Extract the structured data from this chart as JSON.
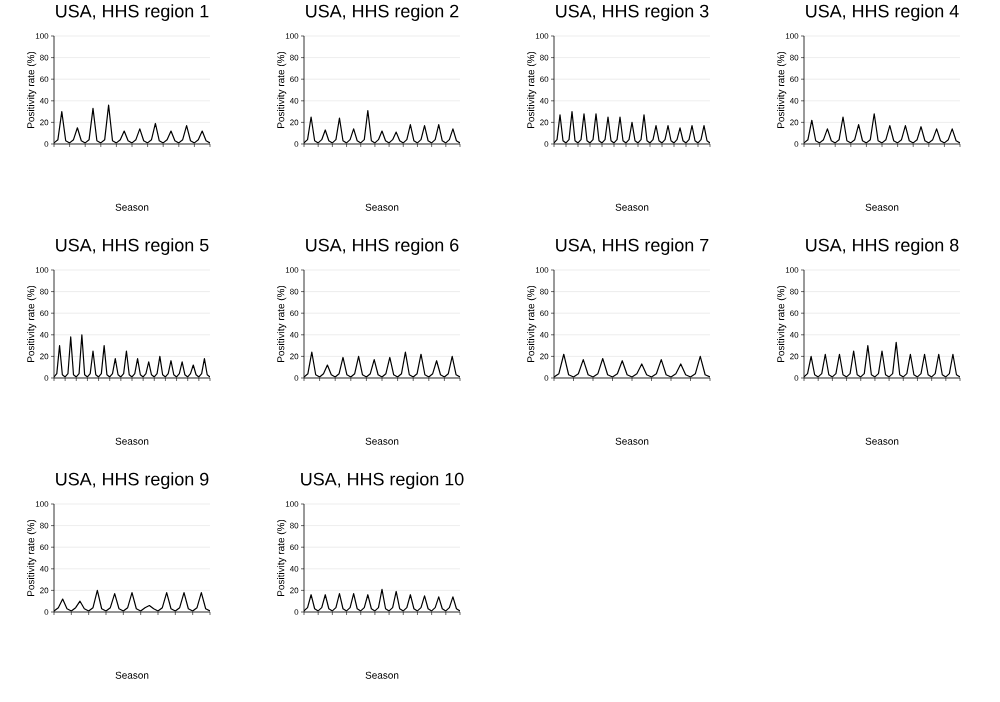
{
  "chart_data": [
    {
      "type": "line",
      "title": "USA, HHS region 1",
      "xlabel": "Season",
      "ylabel": "Positivity rate (%)",
      "color": "#000000",
      "grid": "y",
      "tick_labels": "y",
      "ylim": [
        0,
        100
      ],
      "yticks": [
        0,
        20,
        40,
        60,
        80,
        100
      ],
      "categories": [
        null,
        null,
        null,
        null,
        null,
        null,
        null,
        null,
        null,
        null,
        null,
        null,
        null,
        null,
        null,
        null,
        null,
        null,
        null,
        null,
        null,
        null,
        null,
        null,
        null,
        null,
        null,
        null,
        null,
        null,
        null,
        null,
        null,
        null,
        null,
        null,
        null,
        null,
        null,
        null,
        null
      ],
      "values": [
        1,
        4,
        30,
        3,
        1,
        4,
        15,
        3,
        1,
        4,
        33,
        3,
        1,
        4,
        36,
        3,
        1,
        4,
        12,
        3,
        1,
        4,
        14,
        3,
        1,
        4,
        19,
        3,
        1,
        4,
        12,
        3,
        1,
        4,
        17,
        3,
        1,
        4,
        12,
        3,
        1
      ]
    },
    {
      "type": "line",
      "title": "USA, HHS region 2",
      "xlabel": "Season",
      "ylabel": "Positivity rate (%)",
      "color": "#000000",
      "grid": "y",
      "tick_labels": "y",
      "ylim": [
        0,
        100
      ],
      "yticks": [
        0,
        20,
        40,
        60,
        80,
        100
      ],
      "categories": [
        null,
        null,
        null,
        null,
        null,
        null,
        null,
        null,
        null,
        null,
        null,
        null,
        null,
        null,
        null,
        null,
        null,
        null,
        null,
        null,
        null,
        null,
        null,
        null,
        null,
        null,
        null,
        null,
        null,
        null,
        null,
        null,
        null,
        null,
        null,
        null,
        null,
        null,
        null,
        null,
        null,
        null,
        null,
        null,
        null
      ],
      "values": [
        1,
        4,
        25,
        3,
        1,
        4,
        13,
        3,
        1,
        4,
        24,
        3,
        1,
        4,
        14,
        3,
        1,
        4,
        31,
        3,
        1,
        4,
        12,
        3,
        1,
        4,
        11,
        3,
        1,
        4,
        18,
        3,
        1,
        4,
        17,
        3,
        1,
        4,
        18,
        3,
        1,
        4,
        14,
        3,
        1
      ]
    },
    {
      "type": "line",
      "title": "USA, HHS region 3",
      "xlabel": "Season",
      "ylabel": "Positivity rate (%)",
      "color": "#000000",
      "grid": "y",
      "tick_labels": "y",
      "ylim": [
        0,
        100
      ],
      "yticks": [
        0,
        20,
        40,
        60,
        80,
        100
      ],
      "categories": [
        null,
        null,
        null,
        null,
        null,
        null,
        null,
        null,
        null,
        null,
        null,
        null,
        null,
        null,
        null,
        null,
        null,
        null,
        null,
        null,
        null,
        null,
        null,
        null,
        null,
        null,
        null,
        null,
        null,
        null,
        null,
        null,
        null,
        null,
        null,
        null,
        null,
        null,
        null,
        null,
        null,
        null,
        null,
        null,
        null,
        null,
        null,
        null,
        null,
        null,
        null,
        null,
        null
      ],
      "values": [
        1,
        4,
        27,
        3,
        1,
        4,
        30,
        3,
        1,
        4,
        28,
        3,
        1,
        4,
        28,
        3,
        1,
        4,
        25,
        3,
        1,
        4,
        25,
        3,
        1,
        4,
        20,
        3,
        1,
        4,
        27,
        3,
        1,
        4,
        17,
        3,
        1,
        4,
        17,
        3,
        1,
        4,
        15,
        3,
        1,
        4,
        17,
        3,
        1,
        4,
        17,
        3,
        1
      ]
    },
    {
      "type": "line",
      "title": "USA, HHS region 4",
      "xlabel": "Season",
      "ylabel": "Positivity rate (%)",
      "color": "#000000",
      "grid": "y",
      "tick_labels": "y",
      "ylim": [
        0,
        100
      ],
      "yticks": [
        0,
        20,
        40,
        60,
        80,
        100
      ],
      "categories": [
        null,
        null,
        null,
        null,
        null,
        null,
        null,
        null,
        null,
        null,
        null,
        null,
        null,
        null,
        null,
        null,
        null,
        null,
        null,
        null,
        null,
        null,
        null,
        null,
        null,
        null,
        null,
        null,
        null,
        null,
        null,
        null,
        null,
        null,
        null,
        null,
        null,
        null,
        null,
        null,
        null
      ],
      "values": [
        1,
        4,
        22,
        3,
        1,
        4,
        14,
        3,
        1,
        4,
        25,
        3,
        1,
        4,
        18,
        3,
        1,
        4,
        28,
        3,
        1,
        4,
        17,
        3,
        1,
        4,
        17,
        3,
        1,
        4,
        16,
        3,
        1,
        4,
        14,
        3,
        1,
        4,
        14,
        3,
        1
      ]
    },
    {
      "type": "line",
      "title": "USA, HHS region 5",
      "xlabel": "Season",
      "ylabel": "Positivity rate (%)",
      "color": "#000000",
      "grid": "y",
      "tick_labels": "y",
      "ylim": [
        0,
        100
      ],
      "yticks": [
        0,
        20,
        40,
        60,
        80,
        100
      ],
      "categories": [
        null,
        null,
        null,
        null,
        null,
        null,
        null,
        null,
        null,
        null,
        null,
        null,
        null,
        null,
        null,
        null,
        null,
        null,
        null,
        null,
        null,
        null,
        null,
        null,
        null,
        null,
        null,
        null,
        null,
        null,
        null,
        null,
        null,
        null,
        null,
        null,
        null,
        null,
        null,
        null,
        null,
        null,
        null,
        null,
        null,
        null,
        null,
        null,
        null,
        null,
        null,
        null,
        null,
        null,
        null,
        null,
        null
      ],
      "values": [
        1,
        4,
        30,
        3,
        1,
        4,
        38,
        3,
        1,
        4,
        40,
        3,
        1,
        4,
        25,
        3,
        1,
        4,
        30,
        3,
        1,
        4,
        18,
        3,
        1,
        4,
        25,
        3,
        1,
        4,
        18,
        3,
        1,
        4,
        15,
        3,
        1,
        4,
        20,
        3,
        1,
        4,
        16,
        3,
        1,
        4,
        15,
        3,
        1,
        4,
        12,
        3,
        1,
        4,
        18,
        3,
        1
      ]
    },
    {
      "type": "line",
      "title": "USA, HHS region 6",
      "xlabel": "Season",
      "ylabel": "Positivity rate (%)",
      "color": "#000000",
      "grid": "y",
      "tick_labels": "y",
      "ylim": [
        0,
        100
      ],
      "yticks": [
        0,
        20,
        40,
        60,
        80,
        100
      ],
      "categories": [
        null,
        null,
        null,
        null,
        null,
        null,
        null,
        null,
        null,
        null,
        null,
        null,
        null,
        null,
        null,
        null,
        null,
        null,
        null,
        null,
        null,
        null,
        null,
        null,
        null,
        null,
        null,
        null,
        null,
        null,
        null,
        null,
        null,
        null,
        null,
        null,
        null,
        null,
        null,
        null,
        null
      ],
      "values": [
        1,
        4,
        24,
        3,
        1,
        4,
        12,
        3,
        1,
        4,
        19,
        3,
        1,
        4,
        20,
        3,
        1,
        4,
        17,
        3,
        1,
        4,
        19,
        3,
        1,
        4,
        24,
        3,
        1,
        4,
        22,
        3,
        1,
        4,
        16,
        3,
        1,
        4,
        20,
        3,
        1
      ]
    },
    {
      "type": "line",
      "title": "USA, HHS region 7",
      "xlabel": "Season",
      "ylabel": "Positivity rate (%)",
      "color": "#000000",
      "grid": "y",
      "tick_labels": "y",
      "ylim": [
        0,
        100
      ],
      "yticks": [
        0,
        20,
        40,
        60,
        80,
        100
      ],
      "categories": [
        null,
        null,
        null,
        null,
        null,
        null,
        null,
        null,
        null,
        null,
        null,
        null,
        null,
        null,
        null,
        null,
        null,
        null,
        null,
        null,
        null,
        null,
        null,
        null,
        null,
        null,
        null,
        null,
        null,
        null,
        null,
        null,
        null
      ],
      "values": [
        1,
        4,
        22,
        3,
        1,
        4,
        17,
        3,
        1,
        4,
        18,
        3,
        1,
        4,
        16,
        3,
        1,
        4,
        13,
        3,
        1,
        4,
        17,
        3,
        1,
        4,
        13,
        3,
        1,
        4,
        20,
        3,
        1
      ]
    },
    {
      "type": "line",
      "title": "USA, HHS region 8",
      "xlabel": "Season",
      "ylabel": "Positivity rate (%)",
      "color": "#000000",
      "grid": "y",
      "tick_labels": "y",
      "ylim": [
        0,
        100
      ],
      "yticks": [
        0,
        20,
        40,
        60,
        80,
        100
      ],
      "categories": [
        null,
        null,
        null,
        null,
        null,
        null,
        null,
        null,
        null,
        null,
        null,
        null,
        null,
        null,
        null,
        null,
        null,
        null,
        null,
        null,
        null,
        null,
        null,
        null,
        null,
        null,
        null,
        null,
        null,
        null,
        null,
        null,
        null,
        null,
        null,
        null,
        null,
        null,
        null,
        null,
        null,
        null,
        null,
        null,
        null
      ],
      "values": [
        1,
        4,
        20,
        3,
        1,
        4,
        22,
        3,
        1,
        4,
        22,
        3,
        1,
        4,
        25,
        3,
        1,
        4,
        30,
        3,
        1,
        4,
        25,
        3,
        1,
        4,
        33,
        3,
        1,
        4,
        22,
        3,
        1,
        4,
        22,
        3,
        1,
        4,
        22,
        3,
        1,
        4,
        22,
        3,
        1
      ]
    },
    {
      "type": "line",
      "title": "USA, HHS region 9",
      "xlabel": "Season",
      "ylabel": "Positivity rate (%)",
      "color": "#000000",
      "grid": "y",
      "tick_labels": "y",
      "ylim": [
        0,
        100
      ],
      "yticks": [
        0,
        20,
        40,
        60,
        80,
        100
      ],
      "categories": [
        null,
        null,
        null,
        null,
        null,
        null,
        null,
        null,
        null,
        null,
        null,
        null,
        null,
        null,
        null,
        null,
        null,
        null,
        null,
        null,
        null,
        null,
        null,
        null,
        null,
        null,
        null,
        null,
        null,
        null,
        null,
        null,
        null,
        null,
        null,
        null,
        null
      ],
      "values": [
        1,
        4,
        12,
        3,
        1,
        4,
        10,
        3,
        1,
        4,
        20,
        3,
        1,
        4,
        17,
        3,
        1,
        4,
        18,
        3,
        1,
        4,
        6,
        3,
        1,
        4,
        18,
        3,
        1,
        4,
        18,
        3,
        1,
        4,
        18,
        3,
        1
      ]
    },
    {
      "type": "line",
      "title": "USA, HHS region 10",
      "xlabel": "Season",
      "ylabel": "Positivity rate (%)",
      "color": "#000000",
      "grid": "y",
      "tick_labels": "y",
      "ylim": [
        0,
        100
      ],
      "yticks": [
        0,
        20,
        40,
        60,
        80,
        100
      ],
      "categories": [
        null,
        null,
        null,
        null,
        null,
        null,
        null,
        null,
        null,
        null,
        null,
        null,
        null,
        null,
        null,
        null,
        null,
        null,
        null,
        null,
        null,
        null,
        null,
        null,
        null,
        null,
        null,
        null,
        null,
        null,
        null,
        null,
        null,
        null,
        null,
        null,
        null,
        null,
        null,
        null,
        null,
        null,
        null,
        null,
        null
      ],
      "values": [
        1,
        4,
        16,
        3,
        1,
        4,
        16,
        3,
        1,
        4,
        17,
        3,
        1,
        4,
        17,
        3,
        1,
        4,
        16,
        3,
        1,
        4,
        21,
        3,
        1,
        4,
        19,
        3,
        1,
        4,
        16,
        3,
        1,
        4,
        15,
        3,
        1,
        4,
        14,
        3,
        1,
        4,
        14,
        3,
        1
      ]
    }
  ]
}
